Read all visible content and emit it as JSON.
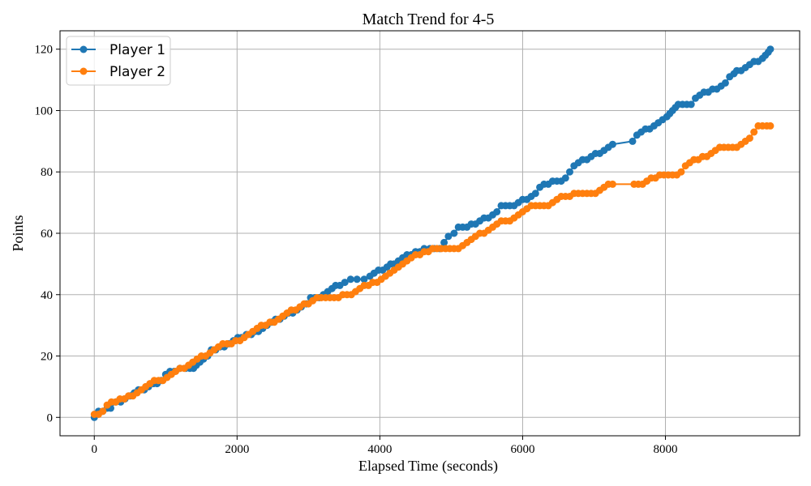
{
  "chart_data": {
    "type": "line",
    "title": "Match Trend for 4-5",
    "xlabel": "Elapsed Time (seconds)",
    "ylabel": "Points",
    "xlim": [
      -480,
      9880
    ],
    "ylim": [
      -6,
      126
    ],
    "xticks": [
      0,
      2000,
      4000,
      6000,
      8000
    ],
    "yticks": [
      0,
      20,
      40,
      60,
      80,
      100,
      120
    ],
    "grid": true,
    "legend_position": "top-left",
    "marker": "circle",
    "series": [
      {
        "name": "Player 1",
        "color": "#1f77b4",
        "points": [
          [
            0,
            0
          ],
          [
            60,
            2
          ],
          [
            120,
            2
          ],
          [
            180,
            3
          ],
          [
            230,
            3
          ],
          [
            300,
            5
          ],
          [
            370,
            5
          ],
          [
            430,
            6
          ],
          [
            500,
            7
          ],
          [
            560,
            8
          ],
          [
            620,
            9
          ],
          [
            700,
            9
          ],
          [
            760,
            10
          ],
          [
            830,
            11
          ],
          [
            880,
            11
          ],
          [
            940,
            12
          ],
          [
            1000,
            14
          ],
          [
            1060,
            15
          ],
          [
            1120,
            15
          ],
          [
            1200,
            16
          ],
          [
            1280,
            16
          ],
          [
            1340,
            16
          ],
          [
            1390,
            16
          ],
          [
            1430,
            17
          ],
          [
            1480,
            18
          ],
          [
            1530,
            19
          ],
          [
            1590,
            20
          ],
          [
            1640,
            22
          ],
          [
            1700,
            22
          ],
          [
            1760,
            23
          ],
          [
            1820,
            23
          ],
          [
            1880,
            24
          ],
          [
            1950,
            25
          ],
          [
            2010,
            26
          ],
          [
            2060,
            26
          ],
          [
            2130,
            27
          ],
          [
            2200,
            27
          ],
          [
            2250,
            28
          ],
          [
            2300,
            28
          ],
          [
            2360,
            29
          ],
          [
            2420,
            30
          ],
          [
            2480,
            31
          ],
          [
            2540,
            32
          ],
          [
            2600,
            32
          ],
          [
            2660,
            33
          ],
          [
            2720,
            34
          ],
          [
            2780,
            34
          ],
          [
            2840,
            35
          ],
          [
            2900,
            36
          ],
          [
            2970,
            37
          ],
          [
            3030,
            39
          ],
          [
            3090,
            39
          ],
          [
            3150,
            39
          ],
          [
            3210,
            40
          ],
          [
            3270,
            41
          ],
          [
            3330,
            42
          ],
          [
            3380,
            43
          ],
          [
            3440,
            43
          ],
          [
            3510,
            44
          ],
          [
            3590,
            45
          ],
          [
            3680,
            45
          ],
          [
            3780,
            45
          ],
          [
            3860,
            46
          ],
          [
            3920,
            47
          ],
          [
            3980,
            48
          ],
          [
            4040,
            48
          ],
          [
            4100,
            49
          ],
          [
            4150,
            50
          ],
          [
            4200,
            50
          ],
          [
            4260,
            51
          ],
          [
            4320,
            52
          ],
          [
            4380,
            53
          ],
          [
            4440,
            53
          ],
          [
            4500,
            54
          ],
          [
            4560,
            54
          ],
          [
            4620,
            55
          ],
          [
            4700,
            55
          ],
          [
            4760,
            55
          ],
          [
            4840,
            55
          ],
          [
            4900,
            57
          ],
          [
            4960,
            59
          ],
          [
            5040,
            60
          ],
          [
            5100,
            62
          ],
          [
            5160,
            62
          ],
          [
            5220,
            62
          ],
          [
            5280,
            63
          ],
          [
            5340,
            63
          ],
          [
            5400,
            64
          ],
          [
            5460,
            65
          ],
          [
            5520,
            65
          ],
          [
            5580,
            66
          ],
          [
            5640,
            67
          ],
          [
            5700,
            69
          ],
          [
            5760,
            69
          ],
          [
            5820,
            69
          ],
          [
            5880,
            69
          ],
          [
            5940,
            70
          ],
          [
            6000,
            71
          ],
          [
            6060,
            71
          ],
          [
            6120,
            72
          ],
          [
            6180,
            73
          ],
          [
            6240,
            75
          ],
          [
            6300,
            76
          ],
          [
            6360,
            76
          ],
          [
            6420,
            77
          ],
          [
            6480,
            77
          ],
          [
            6540,
            77
          ],
          [
            6600,
            78
          ],
          [
            6660,
            80
          ],
          [
            6720,
            82
          ],
          [
            6780,
            83
          ],
          [
            6840,
            84
          ],
          [
            6900,
            84
          ],
          [
            6960,
            85
          ],
          [
            7020,
            86
          ],
          [
            7080,
            86
          ],
          [
            7140,
            87
          ],
          [
            7200,
            88
          ],
          [
            7260,
            89
          ],
          [
            7540,
            90
          ],
          [
            7600,
            92
          ],
          [
            7660,
            93
          ],
          [
            7720,
            94
          ],
          [
            7780,
            94
          ],
          [
            7840,
            95
          ],
          [
            7900,
            96
          ],
          [
            7960,
            97
          ],
          [
            8020,
            98
          ],
          [
            8060,
            99
          ],
          [
            8100,
            100
          ],
          [
            8140,
            101
          ],
          [
            8180,
            102
          ],
          [
            8240,
            102
          ],
          [
            8300,
            102
          ],
          [
            8360,
            102
          ],
          [
            8420,
            104
          ],
          [
            8480,
            105
          ],
          [
            8540,
            106
          ],
          [
            8600,
            106
          ],
          [
            8660,
            107
          ],
          [
            8720,
            107
          ],
          [
            8780,
            108
          ],
          [
            8840,
            109
          ],
          [
            8900,
            111
          ],
          [
            8960,
            112
          ],
          [
            9000,
            113
          ],
          [
            9060,
            113
          ],
          [
            9120,
            114
          ],
          [
            9180,
            115
          ],
          [
            9240,
            116
          ],
          [
            9300,
            116
          ],
          [
            9360,
            117
          ],
          [
            9400,
            118
          ],
          [
            9440,
            119
          ],
          [
            9470,
            120
          ]
        ]
      },
      {
        "name": "Player 2",
        "color": "#ff7f0e",
        "points": [
          [
            0,
            1
          ],
          [
            60,
            1
          ],
          [
            120,
            2
          ],
          [
            180,
            4
          ],
          [
            240,
            5
          ],
          [
            300,
            5
          ],
          [
            360,
            6
          ],
          [
            420,
            6
          ],
          [
            480,
            7
          ],
          [
            540,
            7
          ],
          [
            600,
            8
          ],
          [
            660,
            9
          ],
          [
            720,
            10
          ],
          [
            780,
            11
          ],
          [
            840,
            12
          ],
          [
            900,
            12
          ],
          [
            960,
            12
          ],
          [
            1020,
            13
          ],
          [
            1080,
            14
          ],
          [
            1140,
            15
          ],
          [
            1200,
            16
          ],
          [
            1260,
            16
          ],
          [
            1320,
            17
          ],
          [
            1380,
            18
          ],
          [
            1440,
            19
          ],
          [
            1500,
            20
          ],
          [
            1560,
            20
          ],
          [
            1620,
            21
          ],
          [
            1680,
            22
          ],
          [
            1740,
            23
          ],
          [
            1800,
            24
          ],
          [
            1860,
            24
          ],
          [
            1920,
            24
          ],
          [
            1980,
            25
          ],
          [
            2040,
            25
          ],
          [
            2100,
            26
          ],
          [
            2160,
            27
          ],
          [
            2220,
            28
          ],
          [
            2280,
            29
          ],
          [
            2340,
            30
          ],
          [
            2400,
            30
          ],
          [
            2460,
            31
          ],
          [
            2520,
            31
          ],
          [
            2580,
            32
          ],
          [
            2640,
            33
          ],
          [
            2700,
            34
          ],
          [
            2760,
            35
          ],
          [
            2820,
            35
          ],
          [
            2880,
            36
          ],
          [
            2940,
            37
          ],
          [
            3000,
            37
          ],
          [
            3060,
            38
          ],
          [
            3120,
            39
          ],
          [
            3180,
            39
          ],
          [
            3240,
            39
          ],
          [
            3300,
            39
          ],
          [
            3360,
            39
          ],
          [
            3420,
            39
          ],
          [
            3480,
            40
          ],
          [
            3540,
            40
          ],
          [
            3600,
            40
          ],
          [
            3660,
            41
          ],
          [
            3720,
            42
          ],
          [
            3780,
            43
          ],
          [
            3840,
            43
          ],
          [
            3900,
            44
          ],
          [
            3960,
            44
          ],
          [
            4020,
            45
          ],
          [
            4080,
            46
          ],
          [
            4140,
            47
          ],
          [
            4200,
            48
          ],
          [
            4260,
            49
          ],
          [
            4320,
            50
          ],
          [
            4380,
            51
          ],
          [
            4440,
            52
          ],
          [
            4500,
            53
          ],
          [
            4560,
            53
          ],
          [
            4620,
            54
          ],
          [
            4680,
            54
          ],
          [
            4740,
            55
          ],
          [
            4800,
            55
          ],
          [
            4860,
            55
          ],
          [
            4920,
            55
          ],
          [
            4980,
            55
          ],
          [
            5040,
            55
          ],
          [
            5100,
            55
          ],
          [
            5160,
            56
          ],
          [
            5220,
            57
          ],
          [
            5280,
            58
          ],
          [
            5340,
            59
          ],
          [
            5400,
            60
          ],
          [
            5460,
            60
          ],
          [
            5520,
            61
          ],
          [
            5580,
            62
          ],
          [
            5640,
            63
          ],
          [
            5700,
            64
          ],
          [
            5760,
            64
          ],
          [
            5820,
            64
          ],
          [
            5880,
            65
          ],
          [
            5940,
            66
          ],
          [
            6000,
            67
          ],
          [
            6060,
            68
          ],
          [
            6120,
            69
          ],
          [
            6180,
            69
          ],
          [
            6240,
            69
          ],
          [
            6300,
            69
          ],
          [
            6360,
            69
          ],
          [
            6420,
            70
          ],
          [
            6480,
            71
          ],
          [
            6540,
            72
          ],
          [
            6600,
            72
          ],
          [
            6660,
            72
          ],
          [
            6720,
            73
          ],
          [
            6780,
            73
          ],
          [
            6840,
            73
          ],
          [
            6900,
            73
          ],
          [
            6960,
            73
          ],
          [
            7020,
            73
          ],
          [
            7080,
            74
          ],
          [
            7140,
            75
          ],
          [
            7200,
            76
          ],
          [
            7260,
            76
          ],
          [
            7560,
            76
          ],
          [
            7620,
            76
          ],
          [
            7680,
            76
          ],
          [
            7740,
            77
          ],
          [
            7800,
            78
          ],
          [
            7860,
            78
          ],
          [
            7920,
            79
          ],
          [
            7980,
            79
          ],
          [
            8040,
            79
          ],
          [
            8100,
            79
          ],
          [
            8160,
            79
          ],
          [
            8220,
            80
          ],
          [
            8280,
            82
          ],
          [
            8340,
            83
          ],
          [
            8400,
            84
          ],
          [
            8460,
            84
          ],
          [
            8520,
            85
          ],
          [
            8580,
            85
          ],
          [
            8640,
            86
          ],
          [
            8700,
            87
          ],
          [
            8760,
            88
          ],
          [
            8820,
            88
          ],
          [
            8880,
            88
          ],
          [
            8940,
            88
          ],
          [
            9000,
            88
          ],
          [
            9060,
            89
          ],
          [
            9120,
            90
          ],
          [
            9180,
            91
          ],
          [
            9240,
            93
          ],
          [
            9300,
            95
          ],
          [
            9360,
            95
          ],
          [
            9420,
            95
          ],
          [
            9470,
            95
          ]
        ]
      }
    ]
  }
}
